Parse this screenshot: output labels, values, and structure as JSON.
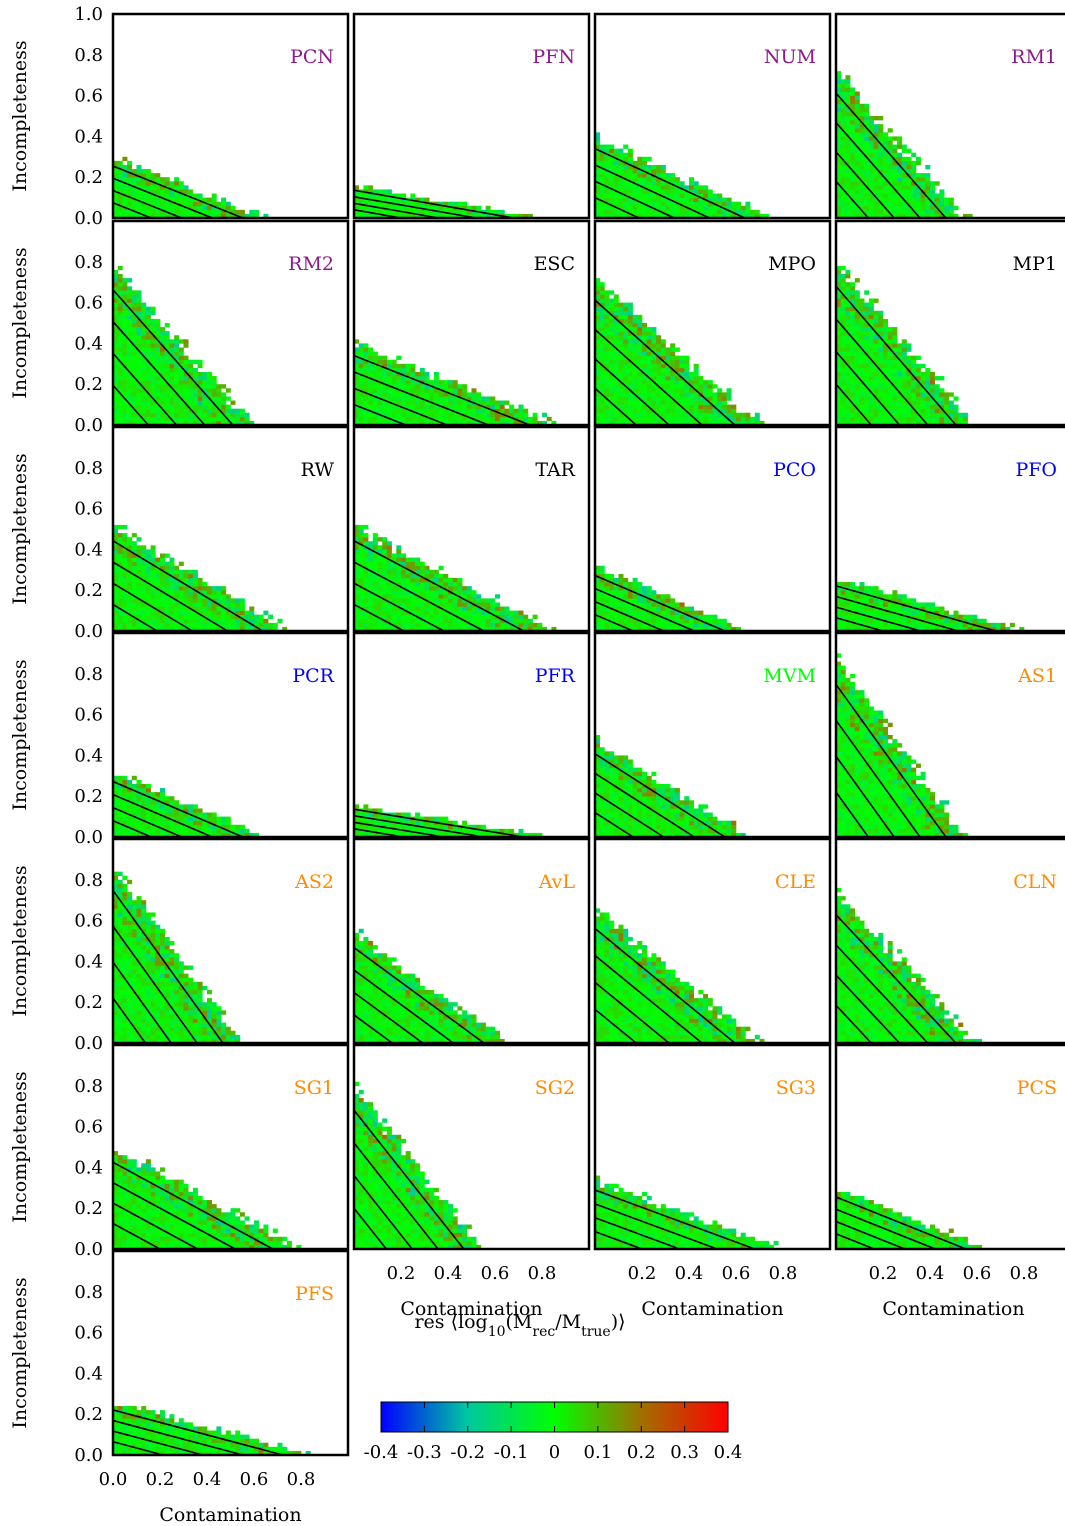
{
  "chart_data": {
    "type": "heatmap",
    "xlabel": "Contamination",
    "ylabel": "Incompleteness",
    "xlim": [
      0,
      1
    ],
    "ylim": [
      0,
      1
    ],
    "x_ticks": [
      "0.0",
      "0.2",
      "0.4",
      "0.6",
      "0.8"
    ],
    "y_ticks": [
      "0.0",
      "0.2",
      "0.4",
      "0.6",
      "0.8",
      "1.0"
    ],
    "colorbar": {
      "label_parts": [
        "res ⟨log",
        "10",
        "(M",
        "rec",
        "/M",
        "true",
        ")⟩"
      ],
      "ticks": [
        "-0.4",
        "-0.3",
        "-0.2",
        "-0.1",
        "0",
        "0.1",
        "0.2",
        "0.3",
        "0.4"
      ],
      "range": [
        -0.4,
        0.4
      ],
      "colors": [
        "#0000ff",
        "#00c8a0",
        "#00ff00",
        "#a07000",
        "#ff0000"
      ]
    },
    "panels": [
      {
        "name": "PCN",
        "color": "#8B1A8B",
        "extent": [
          0.65,
          0.3
        ]
      },
      {
        "name": "PFN",
        "color": "#8B1A8B",
        "extent": [
          0.8,
          0.16
        ]
      },
      {
        "name": "NUM",
        "color": "#8B1A8B",
        "extent": [
          0.75,
          0.4
        ]
      },
      {
        "name": "RM1",
        "color": "#8B1A8B",
        "extent": [
          0.55,
          0.72
        ]
      },
      {
        "name": "RM2",
        "color": "#8B1A8B",
        "extent": [
          0.6,
          0.78
        ]
      },
      {
        "name": "ESC",
        "color": "#000000",
        "extent": [
          0.88,
          0.4
        ]
      },
      {
        "name": "MPO",
        "color": "#000000",
        "extent": [
          0.7,
          0.72
        ]
      },
      {
        "name": "MP1",
        "color": "#000000",
        "extent": [
          0.6,
          0.8
        ]
      },
      {
        "name": "RW",
        "color": "#000000",
        "extent": [
          0.75,
          0.52
        ]
      },
      {
        "name": "TAR",
        "color": "#000000",
        "extent": [
          0.85,
          0.52
        ]
      },
      {
        "name": "PCO",
        "color": "#0000ff",
        "extent": [
          0.65,
          0.32
        ]
      },
      {
        "name": "PFO",
        "color": "#0000ff",
        "extent": [
          0.8,
          0.26
        ]
      },
      {
        "name": "PCR",
        "color": "#0000ff",
        "extent": [
          0.65,
          0.32
        ]
      },
      {
        "name": "PFR",
        "color": "#0000ff",
        "extent": [
          0.85,
          0.16
        ]
      },
      {
        "name": "MVM",
        "color": "#00ff00",
        "extent": [
          0.65,
          0.48
        ]
      },
      {
        "name": "AS1",
        "color": "#ff8c00",
        "extent": [
          0.55,
          0.88
        ]
      },
      {
        "name": "AS2",
        "color": "#ff8c00",
        "extent": [
          0.55,
          0.88
        ]
      },
      {
        "name": "AvL",
        "color": "#ff8c00",
        "extent": [
          0.65,
          0.55
        ]
      },
      {
        "name": "CLE",
        "color": "#ff8c00",
        "extent": [
          0.7,
          0.66
        ]
      },
      {
        "name": "CLN",
        "color": "#ff8c00",
        "extent": [
          0.6,
          0.74
        ]
      },
      {
        "name": "SG1",
        "color": "#ff8c00",
        "extent": [
          0.8,
          0.5
        ]
      },
      {
        "name": "SG2",
        "color": "#ff8c00",
        "extent": [
          0.55,
          0.8
        ]
      },
      {
        "name": "SG3",
        "color": "#ff8c00",
        "extent": [
          0.8,
          0.34
        ]
      },
      {
        "name": "PCS",
        "color": "#ff8c00",
        "extent": [
          0.65,
          0.3
        ]
      },
      {
        "name": "PFS",
        "color": "#ff8c00",
        "extent": [
          0.85,
          0.26
        ]
      }
    ]
  }
}
